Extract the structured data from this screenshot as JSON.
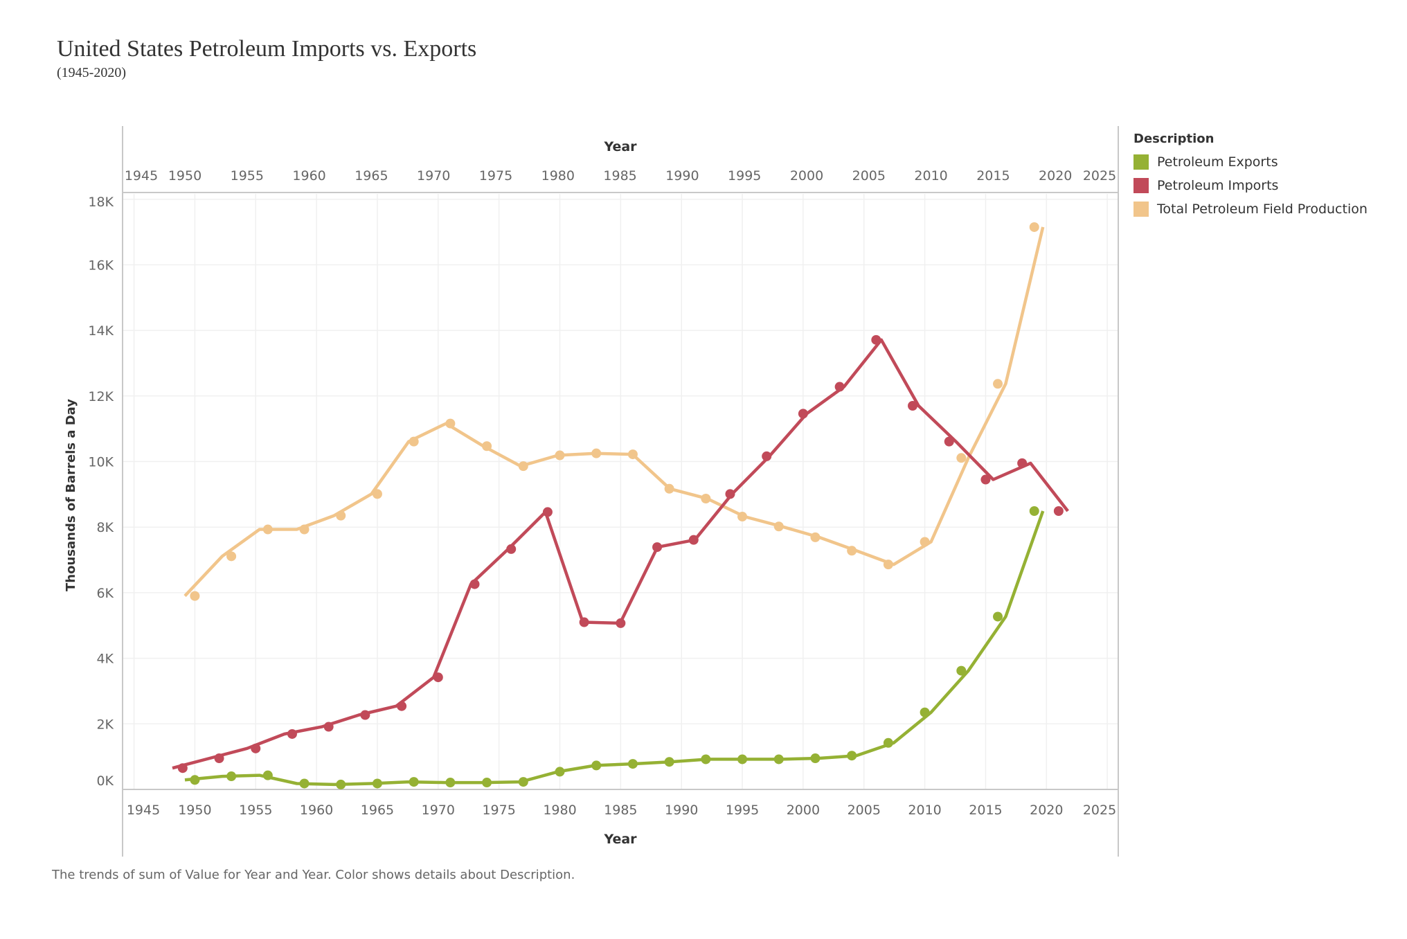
{
  "title": "United States Petroleum Imports vs. Exports",
  "subtitle": "(1945-2020)",
  "caption": "The trends of sum of Value for Year and Year.  Color shows details about Description.",
  "legend": {
    "title": "Description",
    "items": [
      {
        "label": "Petroleum Exports",
        "color": "#95b134"
      },
      {
        "label": "Petroleum Imports",
        "color": "#c14a59"
      },
      {
        "label": "Total Petroleum Field Production",
        "color": "#f1c58b"
      }
    ]
  },
  "chart_data": {
    "type": "line",
    "title": "United States Petroleum Imports vs. Exports",
    "subtitle": "(1945-2020)",
    "grid": true,
    "legend_position": "right",
    "line_x_axis": "top",
    "marker_x_axis": "bottom",
    "x_axis_top": {
      "label": "Year",
      "ticks": [
        1945,
        1950,
        1955,
        1960,
        1965,
        1970,
        1975,
        1980,
        1985,
        1990,
        1995,
        2000,
        2005,
        2010,
        2015,
        2020,
        2025
      ]
    },
    "x_axis_bottom": {
      "label": "Year",
      "ticks": [
        1945,
        1950,
        1955,
        1960,
        1965,
        1970,
        1975,
        1980,
        1985,
        1990,
        1995,
        2000,
        2005,
        2010,
        2015,
        2020,
        2025
      ]
    },
    "xlim": [
      1944,
      2026
    ],
    "y_axis": {
      "label": "Thousands of Barrels a Day",
      "ticks": [
        0,
        2000,
        4000,
        6000,
        8000,
        10000,
        12000,
        14000,
        16000,
        18000
      ],
      "tick_labels": [
        "0K",
        "2K",
        "4K",
        "6K",
        "8K",
        "10K",
        "12K",
        "14K",
        "16K",
        "18K"
      ]
    },
    "ylim": [
      0,
      18200
    ],
    "series": [
      {
        "name": "Total Petroleum Field Production",
        "color": "#f1c58b",
        "x": [
          1950,
          1953,
          1956,
          1959,
          1962,
          1965,
          1968,
          1971,
          1974,
          1977,
          1980,
          1983,
          1986,
          1989,
          1992,
          1995,
          1998,
          2001,
          2004,
          2007,
          2010,
          2013,
          2016,
          2019
        ],
        "y": [
          5900,
          7110,
          7930,
          7930,
          8350,
          9010,
          10610,
          11160,
          10470,
          9860,
          10190,
          10250,
          10220,
          9170,
          8870,
          8320,
          8020,
          7690,
          7280,
          6860,
          7550,
          10110,
          12370,
          17150
        ]
      },
      {
        "name": "Petroleum Imports",
        "color": "#c14a59",
        "x": [
          1949,
          1952,
          1955,
          1958,
          1961,
          1964,
          1967,
          1970,
          1973,
          1976,
          1979,
          1982,
          1985,
          1988,
          1991,
          1994,
          1997,
          2000,
          2003,
          2006,
          2009,
          2012,
          2015,
          2018,
          2021
        ],
        "y": [
          650,
          950,
          1250,
          1690,
          1910,
          2270,
          2540,
          3420,
          6260,
          7330,
          8460,
          5100,
          5070,
          7390,
          7610,
          9010,
          10160,
          11460,
          12280,
          13710,
          11700,
          10610,
          9450,
          9950,
          8490
        ]
      },
      {
        "name": "Petroleum Exports",
        "color": "#95b134",
        "x": [
          1950,
          1953,
          1956,
          1959,
          1962,
          1965,
          1968,
          1971,
          1974,
          1977,
          1980,
          1983,
          1986,
          1989,
          1992,
          1995,
          1998,
          2001,
          2004,
          2007,
          2010,
          2013,
          2016,
          2019
        ],
        "y": [
          290,
          400,
          430,
          180,
          150,
          180,
          230,
          210,
          210,
          230,
          540,
          730,
          780,
          840,
          920,
          920,
          920,
          950,
          1030,
          1420,
          2350,
          3620,
          5270,
          8490
        ]
      }
    ]
  }
}
